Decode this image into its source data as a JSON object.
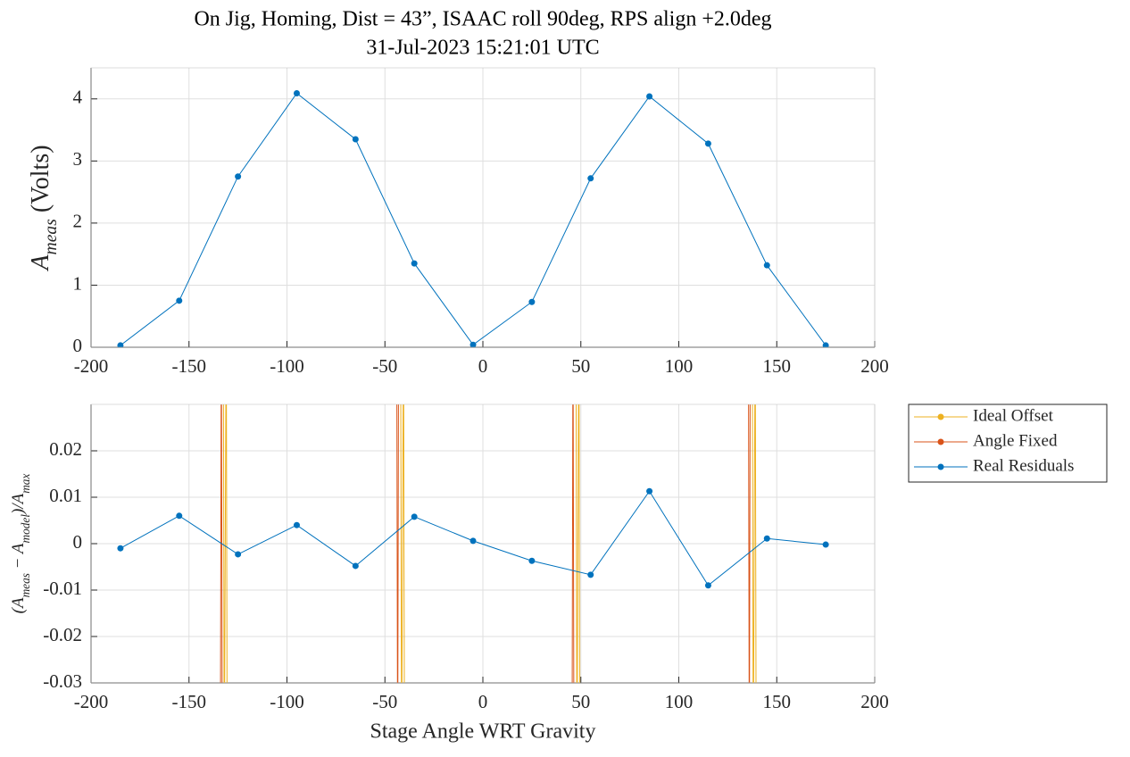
{
  "chart_data": [
    {
      "type": "line",
      "title": "On Jig, Homing, Dist = 43”, ISAAC roll 90deg, RPS align +2.0deg",
      "subtitle": "31-Jul-2023 15:21:01 UTC",
      "ylabel": [
        "A",
        "meas",
        " (Volts)"
      ],
      "x": [
        -185,
        -155,
        -125,
        -95,
        -65,
        -35,
        -5,
        25,
        55,
        85,
        115,
        145,
        175
      ],
      "xlim": [
        -200,
        200
      ],
      "xticks": [
        -200,
        -150,
        -100,
        -50,
        0,
        50,
        100,
        150,
        200
      ],
      "ylim": [
        0,
        4.5
      ],
      "yticks": [
        0,
        1,
        2,
        3,
        4
      ],
      "grid": true,
      "series": [
        {
          "color": "#0072bd",
          "values": [
            0.03,
            0.75,
            2.75,
            4.09,
            3.35,
            1.35,
            0.04,
            0.73,
            2.72,
            4.04,
            3.28,
            1.32,
            0.03
          ]
        }
      ]
    },
    {
      "type": "line",
      "xlabel": "Stage Angle WRT Gravity",
      "ylabel": [
        "(A",
        "meas",
        " − A",
        "model",
        ")/A",
        "max"
      ],
      "xlim": [
        -200,
        200
      ],
      "xticks": [
        -200,
        -150,
        -100,
        -50,
        0,
        50,
        100,
        150,
        200
      ],
      "ylim": [
        -0.03,
        0.03
      ],
      "yticks": [
        -0.03,
        -0.02,
        -0.01,
        0,
        0.01,
        0.02
      ],
      "grid": true,
      "legend": "northeast-outside",
      "series": [
        {
          "name": "Ideal Offset",
          "color": "#edb120",
          "x": [
            -132.5,
            -132,
            -131,
            -130.5,
            null,
            -42,
            -41.5,
            -40.5,
            -40,
            null,
            47.5,
            48,
            49,
            49.5,
            null,
            137.5,
            138,
            139,
            139.5
          ],
          "values": [
            0.05,
            -0.05,
            0.05,
            -0.05,
            null,
            0.05,
            -0.05,
            0.05,
            -0.05,
            null,
            0.05,
            -0.05,
            0.05,
            -0.05,
            null,
            0.05,
            -0.05,
            0.05,
            -0.05
          ]
        },
        {
          "name": "Angle Fixed",
          "color": "#d95319",
          "x": [
            -134,
            -133.5,
            -133,
            null,
            -44,
            -43.5,
            -43,
            null,
            45.5,
            46,
            46.5,
            null,
            135.5,
            136,
            136.5
          ],
          "values": [
            -0.05,
            0.05,
            -0.05,
            null,
            0.05,
            -0.05,
            0.05,
            null,
            -0.05,
            0.05,
            -0.05,
            null,
            0.05,
            -0.05,
            0.05
          ]
        },
        {
          "name": "Real Residuals",
          "color": "#0072bd",
          "x": [
            -185,
            -155,
            -125,
            -95,
            -65,
            -35,
            -5,
            25,
            55,
            85,
            115,
            145,
            175
          ],
          "values": [
            -0.001,
            0.006,
            -0.0023,
            0.004,
            -0.0048,
            0.0058,
            0.0006,
            -0.0037,
            -0.0067,
            0.0113,
            -0.009,
            0.0011,
            -0.0002
          ]
        }
      ]
    }
  ]
}
